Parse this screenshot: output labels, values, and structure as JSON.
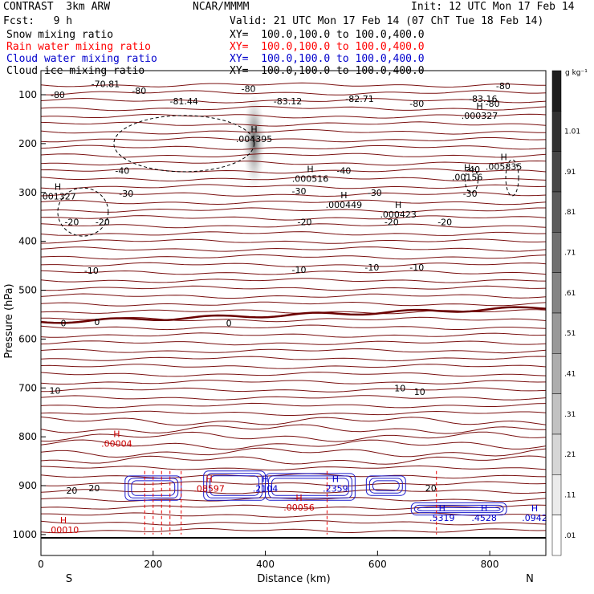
{
  "header": {
    "model": "CONTRAST  3km ARW",
    "org": "NCAR/MMMM",
    "init": "Init: 12 UTC Mon 17 Feb 14",
    "fcst": "Fcst:   9 h",
    "valid": "Valid: 21 UTC Mon 17 Feb 14 (07 ChT Tue 18 Feb 14)"
  },
  "legend": [
    {
      "label": "Snow mixing ratio",
      "xy": "XY=  100.0,100.0 to 100.0,400.0",
      "color": "#000000"
    },
    {
      "label": "Rain water mixing ratio",
      "xy": "XY=  100.0,100.0 to 100.0,400.0",
      "color": "#ff0000"
    },
    {
      "label": "Cloud water mixing ratio",
      "xy": "XY=  100.0,100.0 to 100.0,400.0",
      "color": "#0000cc"
    },
    {
      "label": "Cloud ice mixing ratio",
      "xy": "XY=  100.0,100.0 to 100.0,400.0",
      "color": "#000000"
    }
  ],
  "colorbar": {
    "unit": "g kg⁻¹",
    "labels": [
      "1.01",
      ".91",
      ".81",
      ".71",
      ".61",
      ".51",
      ".41",
      ".31",
      ".21",
      ".11",
      ".01"
    ]
  },
  "chart_data": {
    "type": "contour-cross-section",
    "xlabel": "Distance (km)",
    "ylabel": "Pressure (hPa)",
    "xlim": [
      0,
      900
    ],
    "ylim": [
      1050,
      50
    ],
    "xticks": [
      0,
      200,
      400,
      600,
      800
    ],
    "yticks": [
      100,
      200,
      300,
      400,
      500,
      600,
      700,
      800,
      900,
      1000
    ],
    "end_labels": {
      "left": "S",
      "right": "N"
    },
    "temperature_labels": [
      {
        "text": "-70.81",
        "x": 115,
        "p": 78
      },
      {
        "text": "-80",
        "x": 30,
        "p": 100
      },
      {
        "text": "-80",
        "x": 175,
        "p": 92
      },
      {
        "text": "-81.44",
        "x": 255,
        "p": 113
      },
      {
        "text": "-80",
        "x": 370,
        "p": 88
      },
      {
        "text": "-83.12",
        "x": 440,
        "p": 113
      },
      {
        "text": "-82.71",
        "x": 568,
        "p": 108
      },
      {
        "text": "-80",
        "x": 670,
        "p": 118
      },
      {
        "text": "-83.16",
        "x": 788,
        "p": 108
      },
      {
        "text": "-80",
        "x": 824,
        "p": 82
      },
      {
        "text": "-80",
        "x": 805,
        "p": 118
      },
      {
        "text": "-40",
        "x": 145,
        "p": 255
      },
      {
        "text": "-40",
        "x": 540,
        "p": 255
      },
      {
        "text": "-40",
        "x": 770,
        "p": 253
      },
      {
        "text": "-30",
        "x": 152,
        "p": 302
      },
      {
        "text": "-30",
        "x": 460,
        "p": 297
      },
      {
        "text": "-30",
        "x": 595,
        "p": 300
      },
      {
        "text": "-30",
        "x": 765,
        "p": 302
      },
      {
        "text": "-20",
        "x": 55,
        "p": 360
      },
      {
        "text": "-20",
        "x": 110,
        "p": 360
      },
      {
        "text": "-20",
        "x": 470,
        "p": 360
      },
      {
        "text": "-20",
        "x": 625,
        "p": 360
      },
      {
        "text": "-20",
        "x": 720,
        "p": 360
      },
      {
        "text": "-10",
        "x": 90,
        "p": 460
      },
      {
        "text": "-10",
        "x": 460,
        "p": 458
      },
      {
        "text": "-10",
        "x": 590,
        "p": 453
      },
      {
        "text": "-10",
        "x": 670,
        "p": 453
      },
      {
        "text": "0",
        "x": 40,
        "p": 567
      },
      {
        "text": "0",
        "x": 100,
        "p": 565
      },
      {
        "text": "0",
        "x": 335,
        "p": 567
      },
      {
        "text": "10",
        "x": 25,
        "p": 705
      },
      {
        "text": "10",
        "x": 640,
        "p": 700
      },
      {
        "text": "10",
        "x": 675,
        "p": 708
      },
      {
        "text": "20",
        "x": 55,
        "p": 910
      },
      {
        "text": "20",
        "x": 95,
        "p": 905
      },
      {
        "text": "20",
        "x": 695,
        "p": 905
      }
    ],
    "extrema": [
      {
        "text": ".001327",
        "x": 30,
        "p": 308,
        "color": "#000000"
      },
      {
        "text": ".004395",
        "x": 380,
        "p": 190,
        "color": "#000000"
      },
      {
        "text": ".000516",
        "x": 480,
        "p": 272,
        "color": "#000000"
      },
      {
        "text": ".000449",
        "x": 540,
        "p": 325,
        "color": "#000000"
      },
      {
        "text": ".000423",
        "x": 637,
        "p": 345,
        "color": "#000000"
      },
      {
        "text": ".00156",
        "x": 760,
        "p": 268,
        "color": "#000000"
      },
      {
        "text": ".005835",
        "x": 825,
        "p": 247,
        "color": "#000000"
      },
      {
        "text": ".000327",
        "x": 782,
        "p": 143,
        "color": "#000000"
      },
      {
        "text": ".00004",
        "x": 135,
        "p": 814,
        "color": "#cc0000"
      },
      {
        "text": ".00010",
        "x": 40,
        "p": 990,
        "color": "#cc0000"
      },
      {
        "text": ".08597",
        "x": 300,
        "p": 906,
        "color": "#cc0000"
      },
      {
        "text": ".00056",
        "x": 460,
        "p": 944,
        "color": "#cc0000"
      },
      {
        "text": ".2104",
        "x": 400,
        "p": 906,
        "color": "#0000cc"
      },
      {
        "text": ".2359",
        "x": 525,
        "p": 906,
        "color": "#0000cc"
      },
      {
        "text": ".5319",
        "x": 715,
        "p": 966,
        "color": "#0000cc"
      },
      {
        "text": ".4528",
        "x": 790,
        "p": 966,
        "color": "#0000cc"
      },
      {
        "text": ".0942",
        "x": 880,
        "p": 966,
        "color": "#0000cc"
      }
    ]
  }
}
